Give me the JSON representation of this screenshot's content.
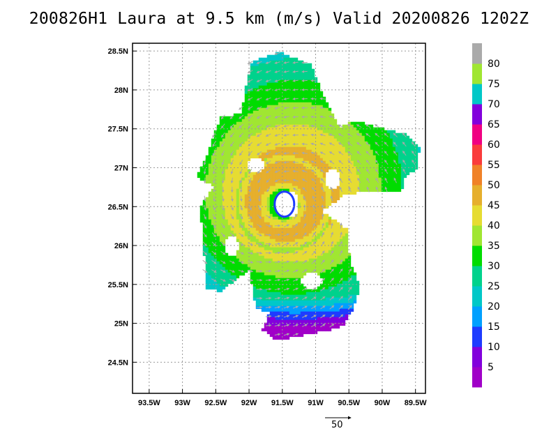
{
  "title": "200826H1 Laura at 9.5 km (m/s) Valid 20200826 1202Z",
  "axes": {
    "lat_labels": [
      "28.5N",
      "28N",
      "27.5N",
      "27N",
      "26.5N",
      "26N",
      "25.5N",
      "25N",
      "24.5N"
    ],
    "lat_values": [
      28.5,
      28,
      27.5,
      27,
      26.5,
      26,
      25.5,
      25,
      24.5
    ],
    "lon_labels": [
      "93.5W",
      "93W",
      "92.5W",
      "92W",
      "91.5W",
      "91W",
      "90.5W",
      "90W",
      "89.5W"
    ],
    "lon_values": [
      -93.5,
      -93,
      -92.5,
      -92,
      -91.5,
      -91,
      -90.5,
      -90,
      -89.5
    ],
    "lat_range": [
      24.1,
      28.6
    ],
    "lon_range": [
      -93.75,
      -89.35
    ],
    "grid": "dotted"
  },
  "colorbar": {
    "labels": [
      "5",
      "10",
      "15",
      "20",
      "25",
      "30",
      "35",
      "40",
      "45",
      "50",
      "55",
      "60",
      "65",
      "70",
      "75",
      "80"
    ],
    "colors": [
      "#a000c8",
      "#8200dc",
      "#1e3cff",
      "#00a0ff",
      "#00c8c8",
      "#00d28c",
      "#00dc00",
      "#a0e632",
      "#e6dc32",
      "#e6af2d",
      "#f08228",
      "#fa3c3c",
      "#f00082",
      "#8200dc",
      "#00c8c8",
      "#a0e632",
      "#aaaaaa"
    ]
  },
  "reference_vector": {
    "label": "50"
  },
  "storm": {
    "name": "Laura",
    "center_lat": 26.55,
    "center_lon": -91.5
  }
}
